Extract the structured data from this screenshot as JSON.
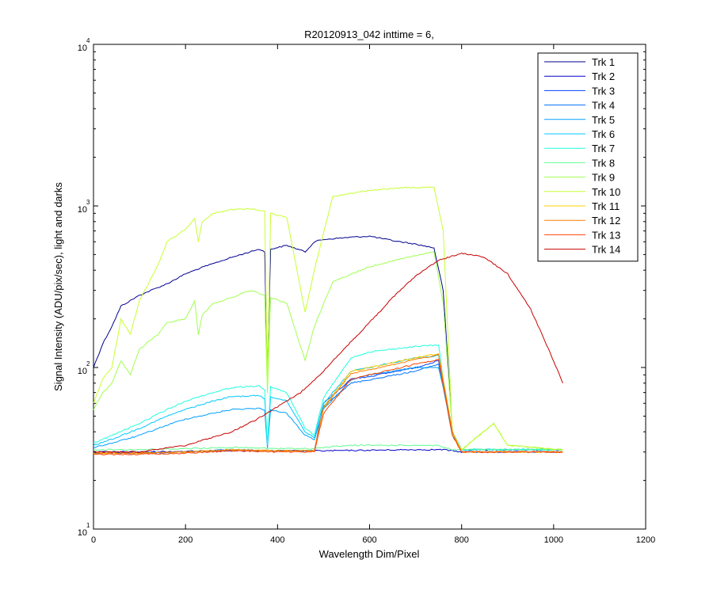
{
  "chart_data": {
    "type": "line",
    "title": "R20120913_042 inttime = 6,",
    "xlabel": "Wavelength Dim/Pixel",
    "ylabel": "Signal Intensity (ADU/pix/sec), light and darks",
    "xlim": [
      0,
      1200
    ],
    "ylim": [
      10,
      10000
    ],
    "yscale": "log",
    "xticks": [
      0,
      200,
      400,
      600,
      800,
      1000,
      1200
    ],
    "yticks": [
      {
        "base": "10",
        "exp": "1",
        "value": 10
      },
      {
        "base": "10",
        "exp": "2",
        "value": 100
      },
      {
        "base": "10",
        "exp": "3",
        "value": 1000
      },
      {
        "base": "10",
        "exp": "4",
        "value": 10000
      }
    ],
    "grid": false,
    "legend_position": "top-right",
    "series": [
      {
        "name": "Trk 1",
        "color": "#00008f",
        "x": [
          0,
          20,
          40,
          60,
          100,
          160,
          200,
          240,
          300,
          360,
          372,
          378,
          385,
          420,
          460,
          480,
          500,
          560,
          600,
          650,
          700,
          740,
          760,
          780,
          800,
          900,
          1020
        ],
        "y": [
          100,
          140,
          180,
          240,
          280,
          330,
          380,
          420,
          480,
          540,
          520,
          90,
          540,
          570,
          520,
          600,
          620,
          640,
          650,
          610,
          580,
          550,
          300,
          40,
          31,
          31,
          31
        ]
      },
      {
        "name": "Trk 2",
        "color": "#0000c8",
        "x": [
          0,
          100,
          300,
          500,
          700,
          750,
          760,
          780,
          800,
          900,
          1020
        ],
        "y": [
          30,
          30,
          30.5,
          30.5,
          31,
          31,
          31,
          30.5,
          30,
          30,
          30
        ]
      },
      {
        "name": "Trk 3",
        "color": "#0040ff",
        "x": [
          0,
          100,
          200,
          300,
          400,
          480,
          500,
          560,
          600,
          700,
          750,
          760,
          780,
          800,
          900,
          1020
        ],
        "y": [
          29.5,
          29.5,
          30,
          31,
          30.5,
          30.5,
          60,
          85,
          88,
          100,
          110,
          80,
          40,
          30,
          30,
          30
        ]
      },
      {
        "name": "Trk 4",
        "color": "#0070ff",
        "x": [
          0,
          100,
          200,
          300,
          400,
          480,
          500,
          560,
          600,
          700,
          750,
          760,
          780,
          800,
          900,
          1020
        ],
        "y": [
          29.5,
          29.5,
          30,
          31,
          30.5,
          30.5,
          58,
          80,
          84,
          95,
          105,
          78,
          40,
          30,
          30,
          30
        ]
      },
      {
        "name": "Trk 5",
        "color": "#00a0ff",
        "x": [
          0,
          40,
          100,
          160,
          200,
          260,
          300,
          360,
          372,
          378,
          385,
          420,
          460,
          480,
          500,
          560,
          600,
          700,
          750,
          760,
          780,
          800,
          900,
          1020
        ],
        "y": [
          32,
          34,
          38,
          44,
          48,
          52,
          55,
          56,
          54,
          32,
          55,
          52,
          38,
          36,
          55,
          84,
          90,
          100,
          100,
          75,
          38,
          31,
          31,
          31
        ]
      },
      {
        "name": "Trk 6",
        "color": "#00c8ff",
        "x": [
          0,
          40,
          100,
          160,
          200,
          260,
          300,
          360,
          372,
          378,
          385,
          420,
          460,
          480,
          500,
          560,
          600,
          700,
          750,
          760,
          780,
          800,
          900,
          1020
        ],
        "y": [
          33,
          36,
          42,
          50,
          55,
          62,
          66,
          67,
          64,
          33,
          66,
          62,
          40,
          37,
          60,
          95,
          100,
          115,
          118,
          80,
          40,
          31,
          31,
          31
        ]
      },
      {
        "name": "Trk 7",
        "color": "#20ffe0",
        "x": [
          0,
          40,
          100,
          160,
          200,
          260,
          300,
          360,
          372,
          378,
          385,
          420,
          460,
          480,
          500,
          560,
          600,
          700,
          750,
          760,
          780,
          800,
          900,
          1020
        ],
        "y": [
          34,
          38,
          45,
          55,
          62,
          70,
          75,
          77,
          72,
          33,
          76,
          70,
          42,
          38,
          65,
          115,
          125,
          135,
          138,
          85,
          40,
          31,
          31,
          31
        ]
      },
      {
        "name": "Trk 8",
        "color": "#60ff90",
        "x": [
          0,
          100,
          200,
          300,
          400,
          480,
          500,
          560,
          600,
          700,
          750,
          760,
          780,
          800,
          900,
          1020
        ],
        "y": [
          31,
          31,
          31.5,
          32,
          31.5,
          31.5,
          32,
          33,
          33,
          33,
          33,
          32,
          31,
          31,
          31,
          31
        ]
      },
      {
        "name": "Trk 9",
        "color": "#a0ff50",
        "x": [
          0,
          20,
          40,
          60,
          80,
          100,
          140,
          160,
          200,
          220,
          228,
          236,
          260,
          300,
          340,
          372,
          378,
          385,
          420,
          460,
          480,
          520,
          600,
          680,
          740,
          760,
          780,
          800,
          870,
          900,
          1020
        ],
        "y": [
          55,
          70,
          80,
          110,
          90,
          130,
          160,
          190,
          200,
          260,
          160,
          210,
          250,
          270,
          300,
          280,
          70,
          270,
          250,
          110,
          180,
          340,
          420,
          480,
          520,
          250,
          40,
          31,
          45,
          33,
          31
        ]
      },
      {
        "name": "Trk 10",
        "color": "#c8ff30",
        "x": [
          0,
          20,
          40,
          60,
          80,
          100,
          140,
          160,
          200,
          220,
          228,
          236,
          260,
          300,
          340,
          372,
          378,
          385,
          420,
          460,
          480,
          520,
          600,
          680,
          740,
          760,
          780,
          800,
          870,
          900,
          1020
        ],
        "y": [
          60,
          85,
          100,
          200,
          160,
          260,
          430,
          600,
          720,
          830,
          600,
          800,
          900,
          950,
          960,
          930,
          80,
          900,
          850,
          220,
          400,
          1150,
          1250,
          1300,
          1300,
          700,
          40,
          31,
          45,
          33,
          31
        ]
      },
      {
        "name": "Trk 11",
        "color": "#ffd000",
        "x": [
          0,
          100,
          200,
          300,
          400,
          480,
          500,
          560,
          600,
          700,
          750,
          760,
          780,
          800,
          900,
          1020
        ],
        "y": [
          29.5,
          29.5,
          30,
          31,
          30.5,
          30.5,
          57,
          95,
          100,
          115,
          122,
          85,
          40,
          30,
          30,
          30
        ]
      },
      {
        "name": "Trk 12",
        "color": "#ff8000",
        "x": [
          0,
          100,
          200,
          300,
          400,
          480,
          500,
          560,
          600,
          700,
          750,
          760,
          780,
          800,
          900,
          1020
        ],
        "y": [
          29.5,
          29.5,
          30,
          31,
          30.5,
          30.5,
          56,
          92,
          97,
          112,
          120,
          83,
          40,
          30,
          30,
          30
        ]
      },
      {
        "name": "Trk 13",
        "color": "#ff4000",
        "x": [
          0,
          100,
          200,
          300,
          400,
          480,
          500,
          560,
          600,
          700,
          750,
          760,
          780,
          800,
          900,
          1020
        ],
        "y": [
          29,
          29,
          29.5,
          30.5,
          30,
          30,
          52,
          85,
          90,
          105,
          112,
          78,
          38,
          30,
          30,
          30
        ]
      },
      {
        "name": "Trk 14",
        "color": "#c80000",
        "x": [
          0,
          100,
          200,
          300,
          350,
          400,
          450,
          500,
          550,
          600,
          650,
          700,
          750,
          800,
          850,
          900,
          950,
          1000,
          1020
        ],
        "y": [
          30,
          30,
          33,
          40,
          47,
          57,
          70,
          95,
          135,
          190,
          270,
          370,
          460,
          510,
          480,
          380,
          230,
          110,
          80
        ]
      }
    ]
  }
}
